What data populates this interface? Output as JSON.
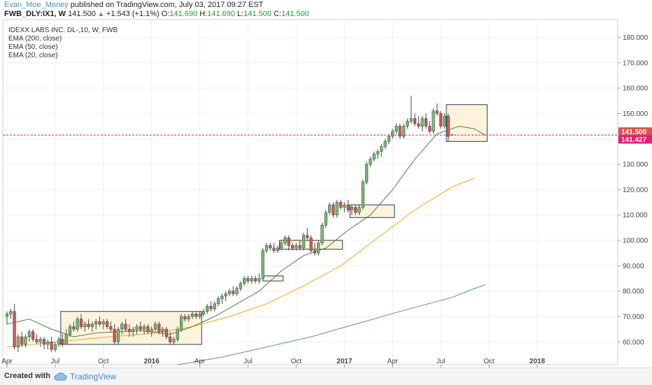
{
  "header": {
    "author": "Evan_Moe_Money",
    "published_text": "published on TradingView.com, July 03, 2017 09:27 EST",
    "symbol": "FWB_DLY:IX1, W",
    "price": "141.500",
    "change": "+1.543 (+1.1%)",
    "open_label": "O:",
    "open": "141.690",
    "high_label": "H:",
    "high": "141.690",
    "low_label": "L:",
    "low": "141.500",
    "close_label": "C:",
    "close": "141.500"
  },
  "legend": {
    "title": "IDEXX LABS INC.  DL-,10, W, FWB",
    "items": [
      "EMA (200, close)",
      "EMA (50, close)",
      "EMA (20, close)"
    ]
  },
  "footer": {
    "created_text": "Created with",
    "brand": "TradingView",
    "brand_icon": "cloud-icon"
  },
  "colors": {
    "up": "#6fbf6f",
    "down": "#d9534f",
    "ema200": "#5b8db8",
    "ema50": "#f5a623",
    "ema20": "#5a7a4a",
    "price_line": "#e0207a",
    "box_fill": "#fdf3dc",
    "box_stroke": "#2b3d5c",
    "last_price_label": "#d9534f",
    "ema_label": "#e0207a"
  },
  "chart_data": {
    "type": "candlestick",
    "y_axis_ticks": [
      "180.000",
      "170.000",
      "160.000",
      "150.000",
      "140.000",
      "130.000",
      "120.000",
      "110.000",
      "100.000",
      "90.000",
      "80.000",
      "70.000",
      "60.000"
    ],
    "y_tick_values": [
      180,
      170,
      160,
      150,
      140,
      130,
      120,
      110,
      100,
      90,
      80,
      70,
      60
    ],
    "ylim": [
      51,
      187
    ],
    "x_axis_ticks": [
      "Apr",
      "Jul",
      "Oct",
      "2016",
      "Apr",
      "Jul",
      "Oct",
      "2017",
      "Apr",
      "Jul",
      "Oct",
      "2018"
    ],
    "price_line_value": 141.5,
    "price_labels": [
      {
        "text": "141.500",
        "value": 141.5,
        "role": "last-price"
      },
      {
        "text": "141.427",
        "value": 141.427,
        "role": "ema20"
      }
    ],
    "candles_ohlc": [
      [
        70,
        72,
        67,
        71
      ],
      [
        71,
        73,
        69,
        72
      ],
      [
        72,
        75,
        57,
        58
      ],
      [
        58,
        63,
        56,
        62
      ],
      [
        62,
        64,
        58,
        59
      ],
      [
        59,
        63,
        58,
        62
      ],
      [
        62,
        65,
        60,
        64
      ],
      [
        64,
        65,
        60,
        61
      ],
      [
        61,
        63,
        59,
        60
      ],
      [
        60,
        62,
        58,
        61
      ],
      [
        61,
        62,
        57,
        59
      ],
      [
        59,
        61,
        57,
        60
      ],
      [
        60,
        62,
        56,
        57
      ],
      [
        57,
        60,
        56,
        59
      ],
      [
        59,
        62,
        58,
        61
      ],
      [
        61,
        63,
        58,
        59
      ],
      [
        59,
        65,
        59,
        63
      ],
      [
        63,
        67,
        62,
        66
      ],
      [
        66,
        68,
        64,
        65
      ],
      [
        65,
        70,
        64,
        69
      ],
      [
        69,
        71,
        65,
        66
      ],
      [
        66,
        68,
        64,
        67
      ],
      [
        67,
        69,
        65,
        66
      ],
      [
        66,
        68,
        64,
        67
      ],
      [
        67,
        69,
        65,
        68
      ],
      [
        68,
        70,
        66,
        67
      ],
      [
        67,
        69,
        65,
        68
      ],
      [
        68,
        69,
        65,
        66
      ],
      [
        66,
        68,
        64,
        65
      ],
      [
        65,
        67,
        59,
        60
      ],
      [
        60,
        66,
        59,
        65
      ],
      [
        65,
        68,
        63,
        67
      ],
      [
        67,
        69,
        64,
        65
      ],
      [
        65,
        67,
        62,
        64
      ],
      [
        64,
        66,
        62,
        65
      ],
      [
        65,
        67,
        63,
        66
      ],
      [
        66,
        68,
        64,
        65
      ],
      [
        65,
        67,
        63,
        66
      ],
      [
        66,
        67,
        63,
        64
      ],
      [
        64,
        66,
        62,
        65
      ],
      [
        65,
        68,
        64,
        67
      ],
      [
        67,
        68,
        63,
        64
      ],
      [
        64,
        66,
        62,
        65
      ],
      [
        65,
        66,
        61,
        62
      ],
      [
        62,
        64,
        59,
        60
      ],
      [
        60,
        62,
        59,
        61
      ],
      [
        61,
        66,
        60,
        65
      ],
      [
        65,
        71,
        64,
        70
      ],
      [
        70,
        71,
        68,
        69
      ],
      [
        69,
        71,
        68,
        70
      ],
      [
        70,
        72,
        69,
        71
      ],
      [
        71,
        72,
        69,
        70
      ],
      [
        70,
        72,
        69,
        71
      ],
      [
        71,
        73,
        70,
        72
      ],
      [
        72,
        75,
        71,
        74
      ],
      [
        74,
        76,
        72,
        73
      ],
      [
        73,
        76,
        72,
        75
      ],
      [
        75,
        78,
        74,
        77
      ],
      [
        77,
        79,
        75,
        78
      ],
      [
        78,
        80,
        76,
        79
      ],
      [
        79,
        81,
        78,
        80
      ],
      [
        80,
        82,
        78,
        79
      ],
      [
        79,
        82,
        78,
        81
      ],
      [
        81,
        84,
        80,
        83
      ],
      [
        83,
        86,
        82,
        85
      ],
      [
        85,
        86,
        83,
        84
      ],
      [
        84,
        86,
        83,
        85
      ],
      [
        85,
        86,
        83,
        84
      ],
      [
        84,
        87,
        83,
        85
      ],
      [
        85,
        97,
        84,
        96
      ],
      [
        96,
        99,
        95,
        98
      ],
      [
        98,
        99,
        96,
        97
      ],
      [
        97,
        99,
        95,
        96
      ],
      [
        96,
        98,
        95,
        97
      ],
      [
        97,
        100,
        96,
        99
      ],
      [
        99,
        102,
        98,
        101
      ],
      [
        101,
        102,
        96,
        98
      ],
      [
        98,
        99,
        96,
        97
      ],
      [
        97,
        99,
        96,
        98
      ],
      [
        98,
        100,
        96,
        97
      ],
      [
        97,
        103,
        96,
        102
      ],
      [
        102,
        105,
        100,
        101
      ],
      [
        101,
        102,
        95,
        96
      ],
      [
        96,
        99,
        94,
        95
      ],
      [
        95,
        100,
        94,
        99
      ],
      [
        99,
        107,
        98,
        106
      ],
      [
        106,
        112,
        105,
        111
      ],
      [
        111,
        115,
        110,
        114
      ],
      [
        114,
        115,
        109,
        110
      ],
      [
        110,
        116,
        109,
        115
      ],
      [
        115,
        116,
        112,
        113
      ],
      [
        113,
        115,
        111,
        114
      ],
      [
        114,
        116,
        111,
        112
      ],
      [
        112,
        114,
        110,
        113
      ],
      [
        113,
        114,
        110,
        111
      ],
      [
        111,
        114,
        110,
        113
      ],
      [
        113,
        124,
        112,
        123
      ],
      [
        123,
        131,
        122,
        130
      ],
      [
        130,
        133,
        129,
        132
      ],
      [
        132,
        135,
        131,
        134
      ],
      [
        134,
        136,
        132,
        135
      ],
      [
        135,
        138,
        133,
        137
      ],
      [
        137,
        140,
        136,
        139
      ],
      [
        139,
        142,
        138,
        141
      ],
      [
        141,
        144,
        140,
        143
      ],
      [
        143,
        146,
        142,
        145
      ],
      [
        145,
        146,
        140,
        141
      ],
      [
        141,
        146,
        140,
        145
      ],
      [
        145,
        148,
        144,
        147
      ],
      [
        147,
        157,
        146,
        148
      ],
      [
        148,
        150,
        145,
        146
      ],
      [
        146,
        149,
        144,
        145
      ],
      [
        145,
        149,
        143,
        148
      ],
      [
        148,
        150,
        144,
        145
      ],
      [
        145,
        147,
        142,
        143
      ],
      [
        143,
        152,
        142,
        151
      ],
      [
        151,
        154,
        149,
        150
      ],
      [
        150,
        151,
        144,
        145
      ],
      [
        145,
        150,
        144,
        149
      ],
      [
        149,
        150,
        139,
        141
      ],
      [
        141.69,
        141.69,
        141.5,
        141.5
      ]
    ],
    "series": [
      {
        "name": "EMA (200, close)",
        "values": [
          [
            46,
            51
          ],
          [
            58,
            54
          ],
          [
            70,
            58
          ],
          [
            82,
            62
          ],
          [
            94,
            67
          ],
          [
            106,
            72
          ],
          [
            120,
            77.5
          ],
          [
            126,
            81
          ],
          [
            129,
            82.5
          ]
        ]
      },
      {
        "name": "EMA (50, close)",
        "values": [
          [
            0,
            58
          ],
          [
            20,
            61
          ],
          [
            40,
            63.5
          ],
          [
            50,
            66
          ],
          [
            60,
            70
          ],
          [
            70,
            75
          ],
          [
            80,
            82
          ],
          [
            90,
            90
          ],
          [
            100,
            101
          ],
          [
            110,
            112
          ],
          [
            120,
            121
          ],
          [
            126,
            124.5
          ]
        ]
      },
      {
        "name": "EMA (20, close)",
        "values": [
          [
            0,
            67
          ],
          [
            6,
            69
          ],
          [
            12,
            65
          ],
          [
            18,
            62
          ],
          [
            24,
            63.5
          ],
          [
            30,
            64
          ],
          [
            36,
            64.5
          ],
          [
            44,
            63
          ],
          [
            50,
            66
          ],
          [
            56,
            70
          ],
          [
            62,
            75
          ],
          [
            68,
            80
          ],
          [
            74,
            88
          ],
          [
            80,
            94
          ],
          [
            86,
            97
          ],
          [
            92,
            104
          ],
          [
            98,
            110
          ],
          [
            104,
            120
          ],
          [
            110,
            132
          ],
          [
            116,
            142
          ],
          [
            122,
            145
          ],
          [
            126,
            144
          ],
          [
            129,
            141.4
          ]
        ]
      }
    ]
  }
}
